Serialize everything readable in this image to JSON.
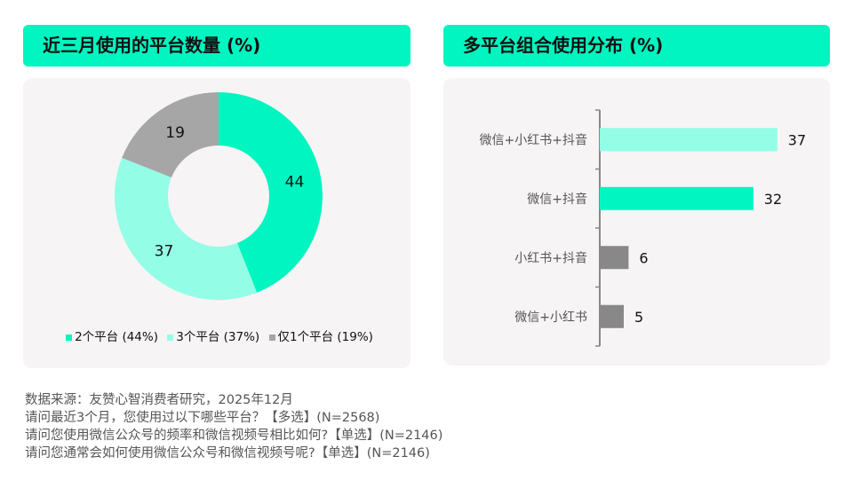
{
  "chart_data": [
    {
      "type": "pie",
      "title": "近三月使用的平台数量 (%)",
      "donut": true,
      "slices": [
        {
          "label": "2个平台 (44%)",
          "value": 44,
          "color": "#00F5C0"
        },
        {
          "label": "3个平台 (37%)",
          "value": 37,
          "color": "#94FDE6"
        },
        {
          "label": "仅1个平台 (19%)",
          "value": 19,
          "color": "#A6A6A6"
        }
      ],
      "legend": "bottom"
    },
    {
      "type": "bar",
      "orientation": "horizontal",
      "title": "多平台组合使用分布 (%)",
      "categories": [
        "微信+小红书+抖音",
        "微信+抖音",
        "小红书+抖音",
        "微信+小红书"
      ],
      "values": [
        37,
        32,
        6,
        5
      ],
      "colors": [
        "#94FDE6",
        "#00F5C0",
        "#888888",
        "#888888"
      ]
    }
  ],
  "footer": [
    "数据来源：友赞心智消费者研究，2025年12月",
    "请问最近3个月，您使用过以下哪些平台？【多选】(N=2568)",
    "请问您使用微信公众号的频率和微信视频号相比如何?【单选】(N=2146)",
    "请问您通常会如何使用微信公众号和微信视频号呢?【单选】(N=2146)"
  ]
}
